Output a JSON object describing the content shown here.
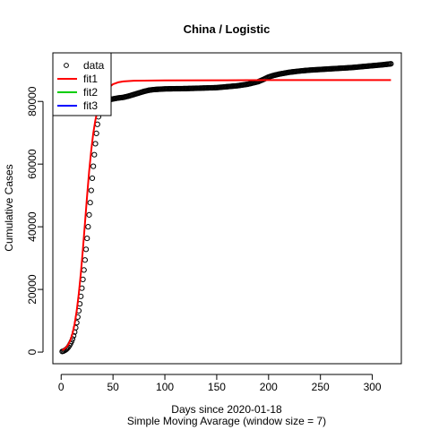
{
  "chart_data": {
    "type": "scatter",
    "title": "China / Logistic",
    "xlabel": "Days since 2020-01-18",
    "subtitle": "Simple Moving Avarage (window size = 7)",
    "ylabel": "Cumulative Cases",
    "xlim": [
      -8,
      328
    ],
    "ylim": [
      -3700,
      95500
    ],
    "xticks": [
      0,
      50,
      100,
      150,
      200,
      250,
      300
    ],
    "yticks": [
      0,
      20000,
      40000,
      60000,
      80000
    ],
    "grid": false,
    "legend_position": "top-left",
    "legend": [
      {
        "label": "data",
        "style": "point",
        "color": "#000000"
      },
      {
        "label": "fit1",
        "style": "line",
        "color": "#ff0000"
      },
      {
        "label": "fit2",
        "style": "line",
        "color": "#00cd00"
      },
      {
        "label": "fit3",
        "style": "line",
        "color": "#0000ff"
      }
    ],
    "series": [
      {
        "name": "data",
        "style": "points",
        "color": "#000000",
        "points": [
          [
            1,
            200
          ],
          [
            2,
            300
          ],
          [
            3,
            450
          ],
          [
            4,
            650
          ],
          [
            5,
            900
          ],
          [
            6,
            1200
          ],
          [
            7,
            1600
          ],
          [
            8,
            2100
          ],
          [
            9,
            2700
          ],
          [
            10,
            3400
          ],
          [
            11,
            4200
          ],
          [
            12,
            5200
          ],
          [
            13,
            6400
          ],
          [
            14,
            7800
          ],
          [
            15,
            9400
          ],
          [
            16,
            11200
          ],
          [
            17,
            13200
          ],
          [
            18,
            15400
          ],
          [
            19,
            17800
          ],
          [
            20,
            20400
          ],
          [
            21,
            23200
          ],
          [
            22,
            26200
          ],
          [
            23,
            29400
          ],
          [
            24,
            32800
          ],
          [
            25,
            36300
          ],
          [
            26,
            40000
          ],
          [
            27,
            43800
          ],
          [
            28,
            47700
          ],
          [
            29,
            51600
          ],
          [
            30,
            55500
          ],
          [
            31,
            59300
          ],
          [
            32,
            63000
          ],
          [
            33,
            66500
          ],
          [
            34,
            69800
          ],
          [
            35,
            72700
          ],
          [
            36,
            75100
          ],
          [
            37,
            76900
          ],
          [
            38,
            78200
          ],
          [
            39,
            79000
          ],
          [
            40,
            79500
          ],
          [
            42,
            80000
          ],
          [
            45,
            80400
          ],
          [
            50,
            80800
          ],
          [
            55,
            81100
          ],
          [
            60,
            81300
          ],
          [
            65,
            81700
          ],
          [
            70,
            82200
          ],
          [
            75,
            82700
          ],
          [
            80,
            83200
          ],
          [
            85,
            83600
          ],
          [
            90,
            83800
          ],
          [
            95,
            83900
          ],
          [
            100,
            84000
          ],
          [
            110,
            84050
          ],
          [
            120,
            84100
          ],
          [
            130,
            84200
          ],
          [
            140,
            84300
          ],
          [
            150,
            84400
          ],
          [
            160,
            84700
          ],
          [
            170,
            85000
          ],
          [
            180,
            85500
          ],
          [
            190,
            86300
          ],
          [
            195,
            87000
          ],
          [
            200,
            87800
          ],
          [
            205,
            88300
          ],
          [
            210,
            88700
          ],
          [
            220,
            89300
          ],
          [
            230,
            89700
          ],
          [
            240,
            90000
          ],
          [
            250,
            90200
          ],
          [
            260,
            90400
          ],
          [
            270,
            90600
          ],
          [
            280,
            90800
          ],
          [
            290,
            91100
          ],
          [
            300,
            91400
          ],
          [
            310,
            91700
          ],
          [
            318,
            92000
          ]
        ]
      },
      {
        "name": "fit1",
        "style": "line",
        "color": "#ff0000",
        "points": [
          [
            1,
            620
          ],
          [
            3,
            1000
          ],
          [
            5,
            1600
          ],
          [
            7,
            2500
          ],
          [
            9,
            3900
          ],
          [
            11,
            6000
          ],
          [
            13,
            9000
          ],
          [
            15,
            13200
          ],
          [
            17,
            18600
          ],
          [
            19,
            25200
          ],
          [
            21,
            32900
          ],
          [
            23,
            41300
          ],
          [
            25,
            49800
          ],
          [
            27,
            57700
          ],
          [
            29,
            64400
          ],
          [
            31,
            69900
          ],
          [
            33,
            74000
          ],
          [
            35,
            77000
          ],
          [
            37,
            79100
          ],
          [
            39,
            80700
          ],
          [
            41,
            81900
          ],
          [
            43,
            83000
          ],
          [
            45,
            84000
          ],
          [
            47,
            84700
          ],
          [
            50,
            85500
          ],
          [
            55,
            86100
          ],
          [
            60,
            86400
          ],
          [
            70,
            86600
          ],
          [
            100,
            86700
          ],
          [
            200,
            86800
          ],
          [
            318,
            86800
          ]
        ]
      }
    ]
  }
}
